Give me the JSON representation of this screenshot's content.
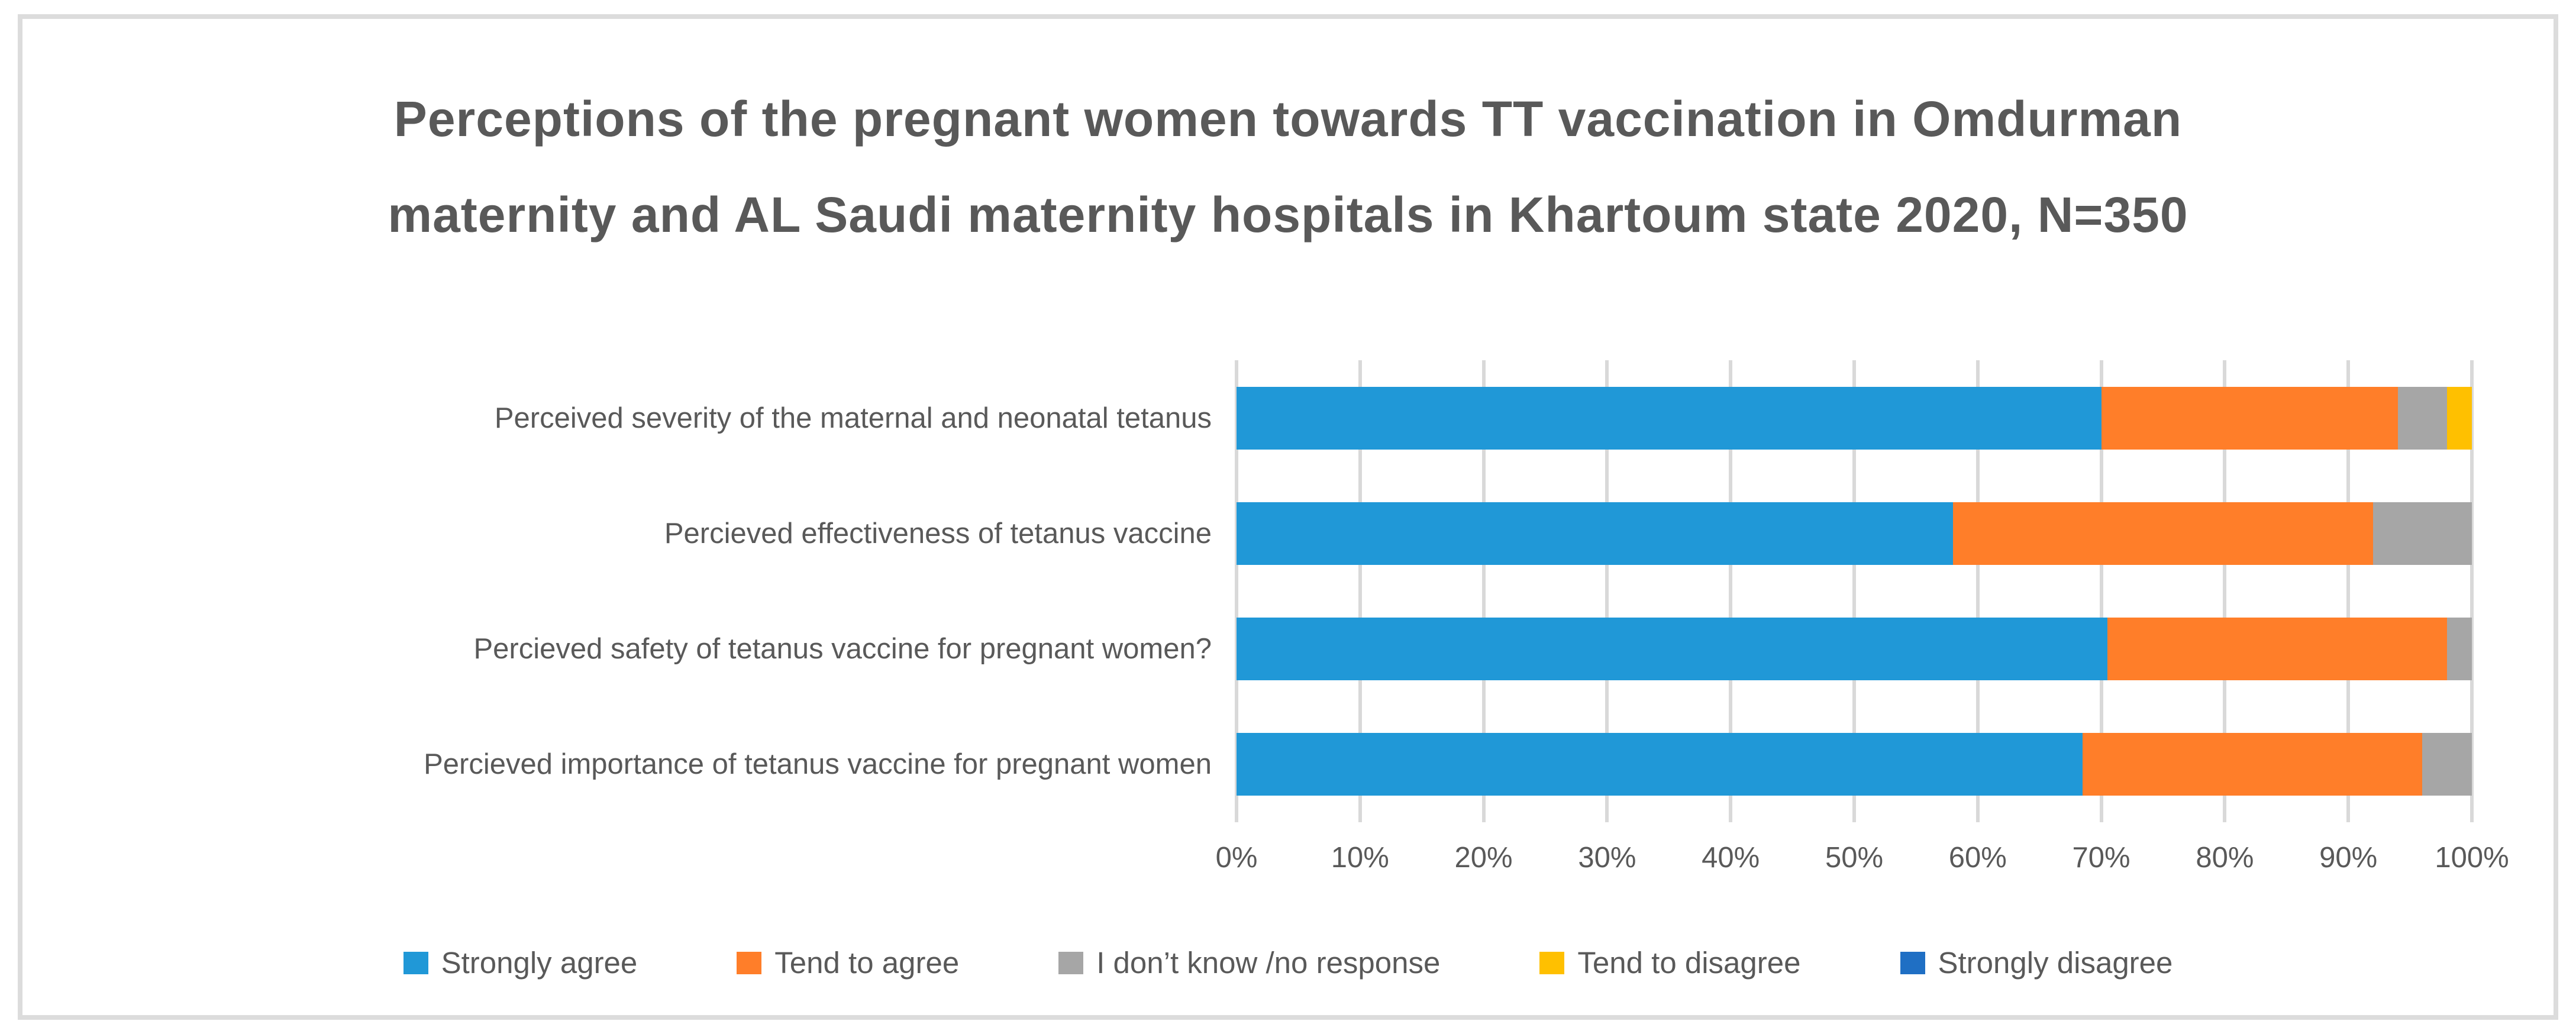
{
  "title": "Perceptions of the pregnant women towards TT vaccination in Omdurman maternity and AL Saudi maternity hospitals in Khartoum state 2020, N=350",
  "colors": {
    "strongly_agree": "#2098D7",
    "tend_to_agree": "#FF7E29",
    "dont_know": "#A6A6A6",
    "tend_to_disagree": "#FFC000",
    "strongly_disagree": "#1F6FC4",
    "gridline": "#D9D9D9",
    "text": "#595959",
    "frame_border": "#DCDCDC"
  },
  "chart_data": {
    "type": "bar",
    "stacked": true,
    "orientation": "horizontal",
    "title": "Perceptions of the pregnant women towards TT vaccination in Omdurman maternity and AL Saudi maternity hospitals in Khartoum state 2020, N=350",
    "categories": [
      "Perceived severity of the maternal and neonatal tetanus",
      "Percieved effectiveness of tetanus vaccine",
      "Percieved safety of tetanus vaccine for pregnant women?",
      "Percieved importance of tetanus vaccine for pregnant women"
    ],
    "series": [
      {
        "name": "Strongly agree",
        "color": "#2098D7",
        "values": [
          70,
          58,
          70.5,
          68.5
        ]
      },
      {
        "name": "Tend to agree",
        "color": "#FF7E29",
        "values": [
          24,
          34,
          27.5,
          27.5
        ]
      },
      {
        "name": "I don’t know /no response",
        "color": "#A6A6A6",
        "values": [
          4,
          8,
          2,
          4
        ]
      },
      {
        "name": "Tend to disagree",
        "color": "#FFC000",
        "values": [
          2,
          0,
          0,
          0
        ]
      },
      {
        "name": "Strongly disagree",
        "color": "#1F6FC4",
        "values": [
          0,
          0,
          0,
          0
        ]
      }
    ],
    "x_ticks": [
      "0%",
      "10%",
      "20%",
      "30%",
      "40%",
      "50%",
      "60%",
      "70%",
      "80%",
      "90%",
      "100%"
    ],
    "xlim": [
      0,
      100
    ],
    "xlabel": "",
    "ylabel": "",
    "grid": true,
    "legend_position": "bottom"
  }
}
